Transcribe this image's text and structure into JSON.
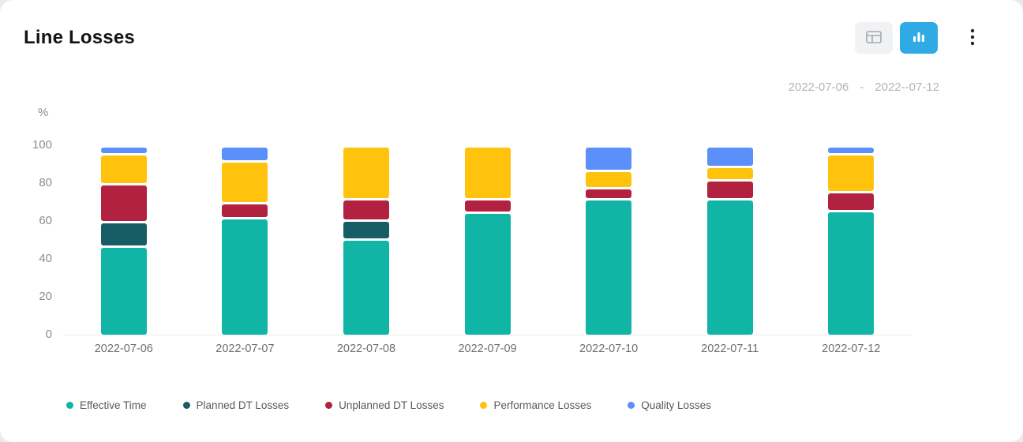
{
  "header": {
    "title": "Line Losses"
  },
  "toolbar": {
    "table_view_icon": "table-icon",
    "chart_view_icon": "bar-chart-icon",
    "menu_icon": "kebab-menu-icon",
    "active_button_color": "#2faae4",
    "inactive_button_color": "#f1f2f4"
  },
  "date_range": {
    "start": "2022-07-06",
    "separator": "-",
    "end": "2022--07-12"
  },
  "chart_data": {
    "type": "bar",
    "stacked": true,
    "title": "Line Losses",
    "unit_label": "%",
    "ylim": [
      0,
      100
    ],
    "y_ticks": [
      0,
      20,
      40,
      60,
      80,
      100
    ],
    "grid": false,
    "legend_position": "bottom",
    "categories": [
      "2022-07-06",
      "2022-07-07",
      "2022-07-08",
      "2022-07-09",
      "2022-07-10",
      "2022-07-11",
      "2022-07-12"
    ],
    "series": [
      {
        "name": "Effective Time",
        "color": "#10b5a6",
        "values": [
          47,
          62,
          51,
          65,
          72,
          72,
          66
        ]
      },
      {
        "name": "Planned DT  Losses",
        "color": "#175d66",
        "values": [
          13,
          0,
          10,
          0,
          0,
          0,
          0
        ]
      },
      {
        "name": "Unplanned DT Losses",
        "color": "#b2213f",
        "values": [
          20,
          8,
          11,
          7,
          6,
          10,
          10
        ]
      },
      {
        "name": "Performance Losses",
        "color": "#ffc30d",
        "values": [
          16,
          22,
          28,
          28,
          9,
          7,
          20
        ]
      },
      {
        "name": "Quality Losses",
        "color": "#5b8ff9",
        "values": [
          4,
          8,
          0,
          0,
          13,
          11,
          4
        ]
      }
    ]
  }
}
